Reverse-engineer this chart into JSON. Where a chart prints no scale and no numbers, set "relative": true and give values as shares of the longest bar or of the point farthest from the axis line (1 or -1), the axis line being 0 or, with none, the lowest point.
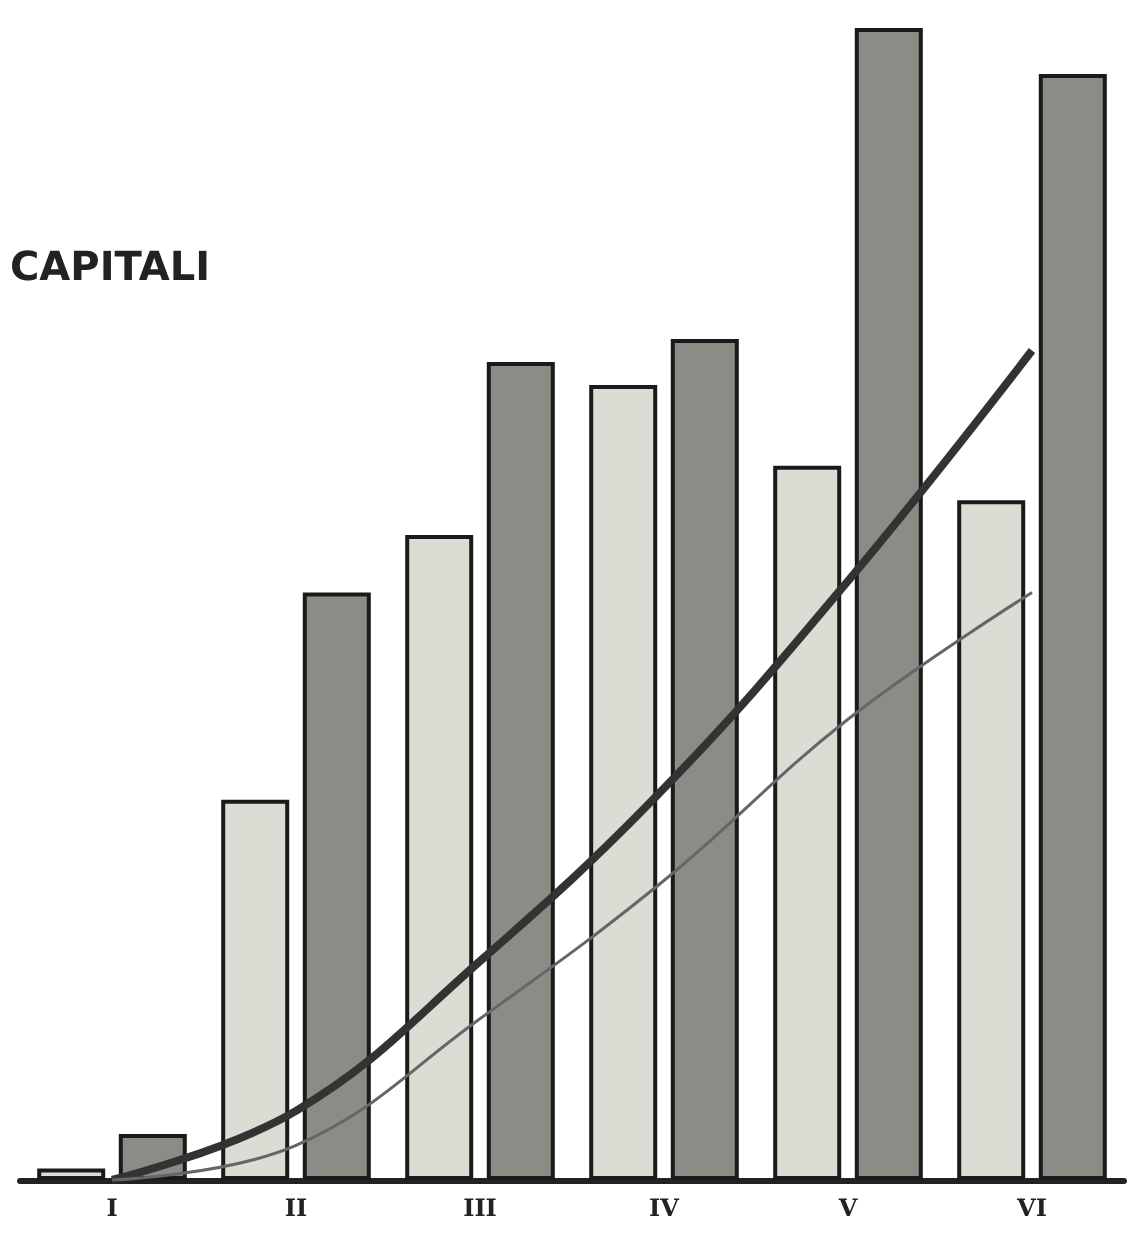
{
  "chart_data": {
    "type": "bar",
    "title": "CAPITALI",
    "relative": true,
    "categories": [
      "I",
      "II",
      "III",
      "IV",
      "V",
      "VI"
    ],
    "series": [
      {
        "color": "#dcdcd4",
        "values": [
          0.01,
          0.33,
          0.56,
          0.69,
          0.62,
          0.59
        ]
      },
      {
        "color": "#8c8c86",
        "values": [
          0.04,
          0.51,
          0.71,
          0.73,
          1,
          0.96
        ]
      },
      {
        "type": "line",
        "color": "#333333",
        "values": [
          0.0,
          0.06,
          0.19,
          0.34,
          0.52,
          0.72
        ]
      },
      {
        "type": "line",
        "color": "#666666",
        "values": [
          0.0,
          0.03,
          0.14,
          0.26,
          0.4,
          0.51
        ]
      }
    ],
    "marker": "none"
  }
}
